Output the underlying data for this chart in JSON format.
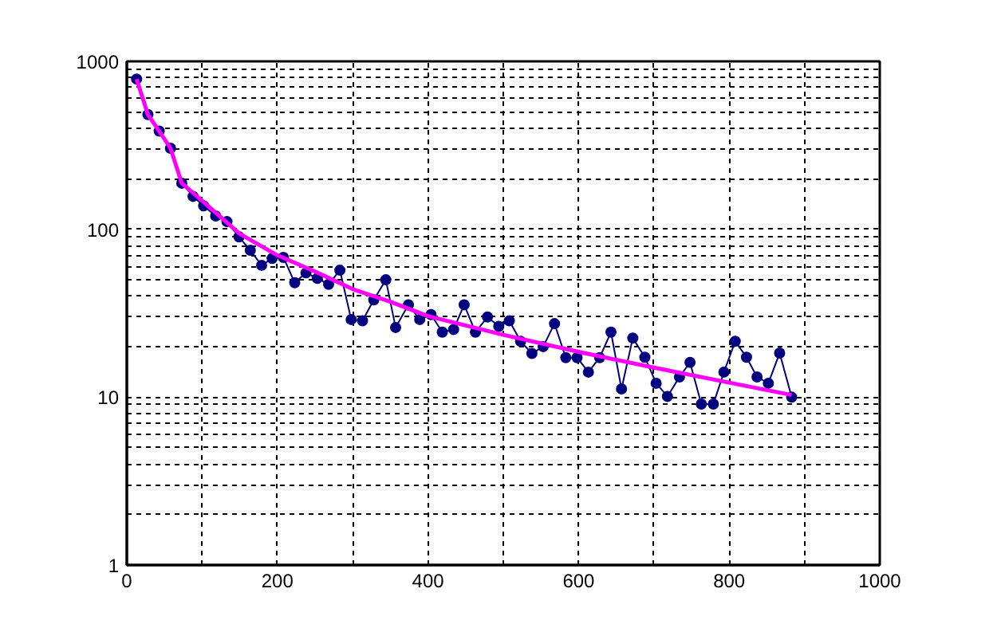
{
  "chart_data": {
    "type": "line",
    "log": "y",
    "grid": true,
    "xlim": [
      0,
      1000
    ],
    "xticks": [
      0,
      {
        "value": 100,
        "label": null
      },
      200,
      {
        "value": 300,
        "label": null
      },
      400,
      {
        "value": 500,
        "label": null
      },
      600,
      {
        "value": 700,
        "label": null
      },
      800,
      {
        "value": 900,
        "label": null
      },
      1000
    ],
    "ylim": [
      1,
      1000
    ],
    "yticks": [
      1,
      {
        "value": 2,
        "label": null
      },
      {
        "value": 3,
        "label": null
      },
      {
        "value": 4,
        "label": null
      },
      {
        "value": 5,
        "label": null
      },
      {
        "value": 6,
        "label": null
      },
      {
        "value": 7,
        "label": null
      },
      {
        "value": 8,
        "label": null
      },
      {
        "value": 9,
        "label": null
      },
      10,
      {
        "value": 20,
        "label": null
      },
      {
        "value": 30,
        "label": null
      },
      {
        "value": 40,
        "label": null
      },
      {
        "value": 50,
        "label": null
      },
      {
        "value": 60,
        "label": null
      },
      {
        "value": 70,
        "label": null
      },
      {
        "value": 80,
        "label": null
      },
      {
        "value": 90,
        "label": null
      },
      100,
      {
        "value": 200,
        "label": null
      },
      {
        "value": 300,
        "label": null
      },
      {
        "value": 400,
        "label": null
      },
      {
        "value": 500,
        "label": null
      },
      {
        "value": 600,
        "label": null
      },
      {
        "value": 700,
        "label": null
      },
      {
        "value": 800,
        "label": null
      },
      {
        "value": 900,
        "label": null
      },
      1000
    ],
    "series": [
      {
        "color": "#000080",
        "marker": "circle",
        "x": [
          13,
          28,
          43,
          58,
          73,
          88,
          102,
          118,
          133,
          149,
          164,
          179,
          193,
          208,
          223,
          238,
          253,
          268,
          283,
          298,
          313,
          328,
          344,
          357,
          374,
          389,
          404,
          419,
          434,
          448,
          463,
          479,
          494,
          508,
          523,
          538,
          553,
          568,
          583,
          598,
          613,
          628,
          643,
          657,
          672,
          688,
          703,
          718,
          734,
          748,
          763,
          779,
          793,
          808,
          823,
          837,
          852,
          867,
          883
        ],
        "values": [
          785,
          482,
          384,
          304,
          188,
          157,
          138,
          120,
          111,
          90,
          75,
          61,
          67,
          68,
          48,
          55,
          51,
          47,
          57,
          29,
          28.5,
          38,
          50,
          26,
          35.5,
          29,
          31,
          24.4,
          25.3,
          35.5,
          24.4,
          30,
          26.4,
          28.5,
          21.5,
          18.2,
          20,
          27.4,
          17.2,
          17.2,
          14.1,
          17.2,
          24.4,
          11.2,
          22.5,
          17.3,
          12.1,
          10.1,
          13.2,
          16.1,
          9.1,
          9.1,
          14.1,
          21.5,
          17.3,
          13.2,
          12.1,
          18.3,
          10
        ]
      },
      {
        "color": "#ff00ff",
        "marker": "none",
        "x": [
          13,
          28,
          43,
          58,
          73,
          100,
          150,
          200,
          250,
          300,
          350,
          400,
          500,
          600,
          700,
          800,
          883
        ],
        "values": [
          785,
          482,
          384,
          304,
          188,
          148,
          94,
          70,
          56,
          44,
          37,
          30.4,
          23.5,
          18.6,
          15,
          12.2,
          10.3
        ]
      }
    ]
  }
}
